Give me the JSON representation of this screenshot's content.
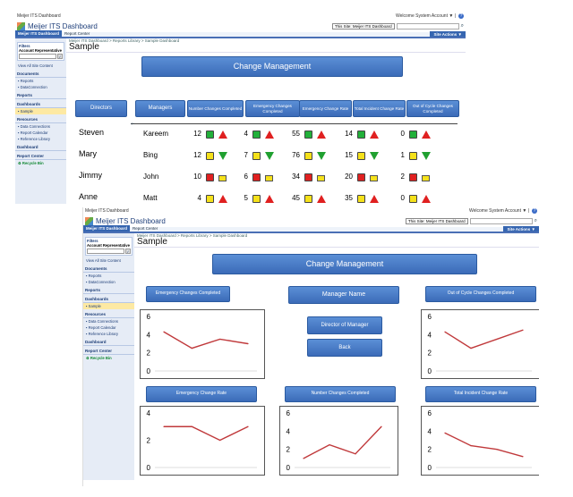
{
  "window1": {
    "top_left": "Meijer ITS Dashboard",
    "account": "Welcome System Account ▼ |",
    "brand": "Meijer ITS Dashboard",
    "site_select": "This Site: Meijer ITS Dashboard",
    "tabs": [
      "Meijer ITS Dashboard",
      "Report Center"
    ],
    "site_actions": "Site Actions ▼",
    "breadcrumb": "Meijer ITS Dashboard > Reports Library > Sample Dashboard",
    "page_title": "Sample",
    "sidebar": {
      "filters": "Filters",
      "filter_label": "Account Representative",
      "view_all": "View All Site Content",
      "documents": "Documents",
      "doc_items": [
        "▪ Reports",
        "▪ DataConnection"
      ],
      "reports": "Reports",
      "dashboards": "Dashboards",
      "dash_items": [
        "▪ Sample"
      ],
      "resources": "Resources",
      "res_items": [
        "▪ Data Connections",
        "▪ Report Calendar",
        "▪ Reference Library"
      ],
      "dashboard": "Dashboard",
      "report_center": "Report Center",
      "recycle": "Recycle Bin"
    },
    "banner": "Change Management",
    "headers": {
      "directors": "Directors",
      "managers": "Managers",
      "c1": "Number Changes Completed",
      "c2": "Emergency Changes Completed",
      "c3": "Emergency Change Rate",
      "c4": "Total Incident Change Rate",
      "c5": "Out of Cycle Changes Completed"
    },
    "directors": [
      "Steven",
      "Mary",
      "Jimmy",
      "Anne"
    ],
    "managers": [
      "Kareem",
      "Bing",
      "John",
      "Matt"
    ],
    "rows": [
      {
        "v": [
          "12",
          "4",
          "55",
          "14",
          "0"
        ],
        "ind": [
          "g",
          "up",
          "g",
          "up",
          "g",
          "up",
          "g",
          "up",
          "g",
          "up"
        ]
      },
      {
        "v": [
          "12",
          "7",
          "76",
          "15",
          "1"
        ],
        "ind": [
          "y",
          "down",
          "y",
          "down",
          "y",
          "down",
          "y",
          "down",
          "y",
          "down"
        ]
      },
      {
        "v": [
          "10",
          "6",
          "34",
          "20",
          "2"
        ],
        "ind": [
          "r",
          "ysm",
          "r",
          "ysm",
          "r",
          "ysm",
          "r",
          "ysm",
          "r",
          "ysm"
        ]
      },
      {
        "v": [
          "4",
          "5",
          "45",
          "35",
          "0"
        ],
        "ind": [
          "y",
          "up",
          "y",
          "up",
          "y",
          "up",
          "y",
          "up",
          "y",
          "up"
        ]
      }
    ]
  },
  "window2": {
    "top_left": "Meijer ITS Dashboard",
    "account": "Welcome System Account ▼ |",
    "brand": "Meijer ITS Dashboard",
    "site_select": "This Site: Meijer ITS Dashboard",
    "tabs": [
      "Meijer ITS Dashboard",
      "Report Center"
    ],
    "site_actions": "Site Actions ▼",
    "breadcrumb": "Meijer ITS Dashboard > Reports Library > Sample Dashboard",
    "page_title": "Sample",
    "banner": "Change Management",
    "manager_name": "Manager Name",
    "director_btn": "Director of Manager",
    "back_btn": "Back",
    "chart_titles": [
      "Emergency Changes Completed",
      "Out of Cycle Changes Completed",
      "Emergency Change Rate",
      "Number Changes Completed",
      "Total Incident Change Rate"
    ]
  },
  "colors": {
    "line": "#c0393b",
    "button": "#3b6bb8",
    "green": "#22b03a",
    "yellow": "#f5e11a",
    "red": "#e02020"
  },
  "chart_data": [
    {
      "type": "line",
      "title": "Emergency Changes Completed",
      "x": [
        1,
        2,
        3,
        4
      ],
      "values": [
        4.3,
        2.5,
        3.5,
        3.0
      ],
      "ylim": [
        0,
        6
      ],
      "yticks": [
        0,
        2,
        4,
        6
      ]
    },
    {
      "type": "line",
      "title": "Out of Cycle Changes Completed",
      "x": [
        1,
        2,
        3,
        4
      ],
      "values": [
        4.3,
        2.5,
        3.5,
        4.5
      ],
      "ylim": [
        0,
        6
      ],
      "yticks": [
        0,
        2,
        4,
        6
      ]
    },
    {
      "type": "line",
      "title": "Emergency Change Rate",
      "x": [
        1,
        2,
        3,
        4
      ],
      "values": [
        3.0,
        3.0,
        2.0,
        3.0
      ],
      "ylim": [
        0,
        4
      ],
      "yticks": [
        0,
        2,
        4
      ]
    },
    {
      "type": "line",
      "title": "Number Changes Completed",
      "x": [
        1,
        2,
        3,
        4
      ],
      "values": [
        1.0,
        2.5,
        1.5,
        4.5
      ],
      "ylim": [
        0,
        6
      ],
      "yticks": [
        0,
        2,
        4,
        6
      ]
    },
    {
      "type": "line",
      "title": "Total Incident Change Rate",
      "x": [
        1,
        2,
        3,
        4
      ],
      "values": [
        3.8,
        2.4,
        2.0,
        1.2
      ],
      "ylim": [
        0,
        6
      ],
      "yticks": [
        0,
        2,
        4,
        6
      ]
    }
  ]
}
